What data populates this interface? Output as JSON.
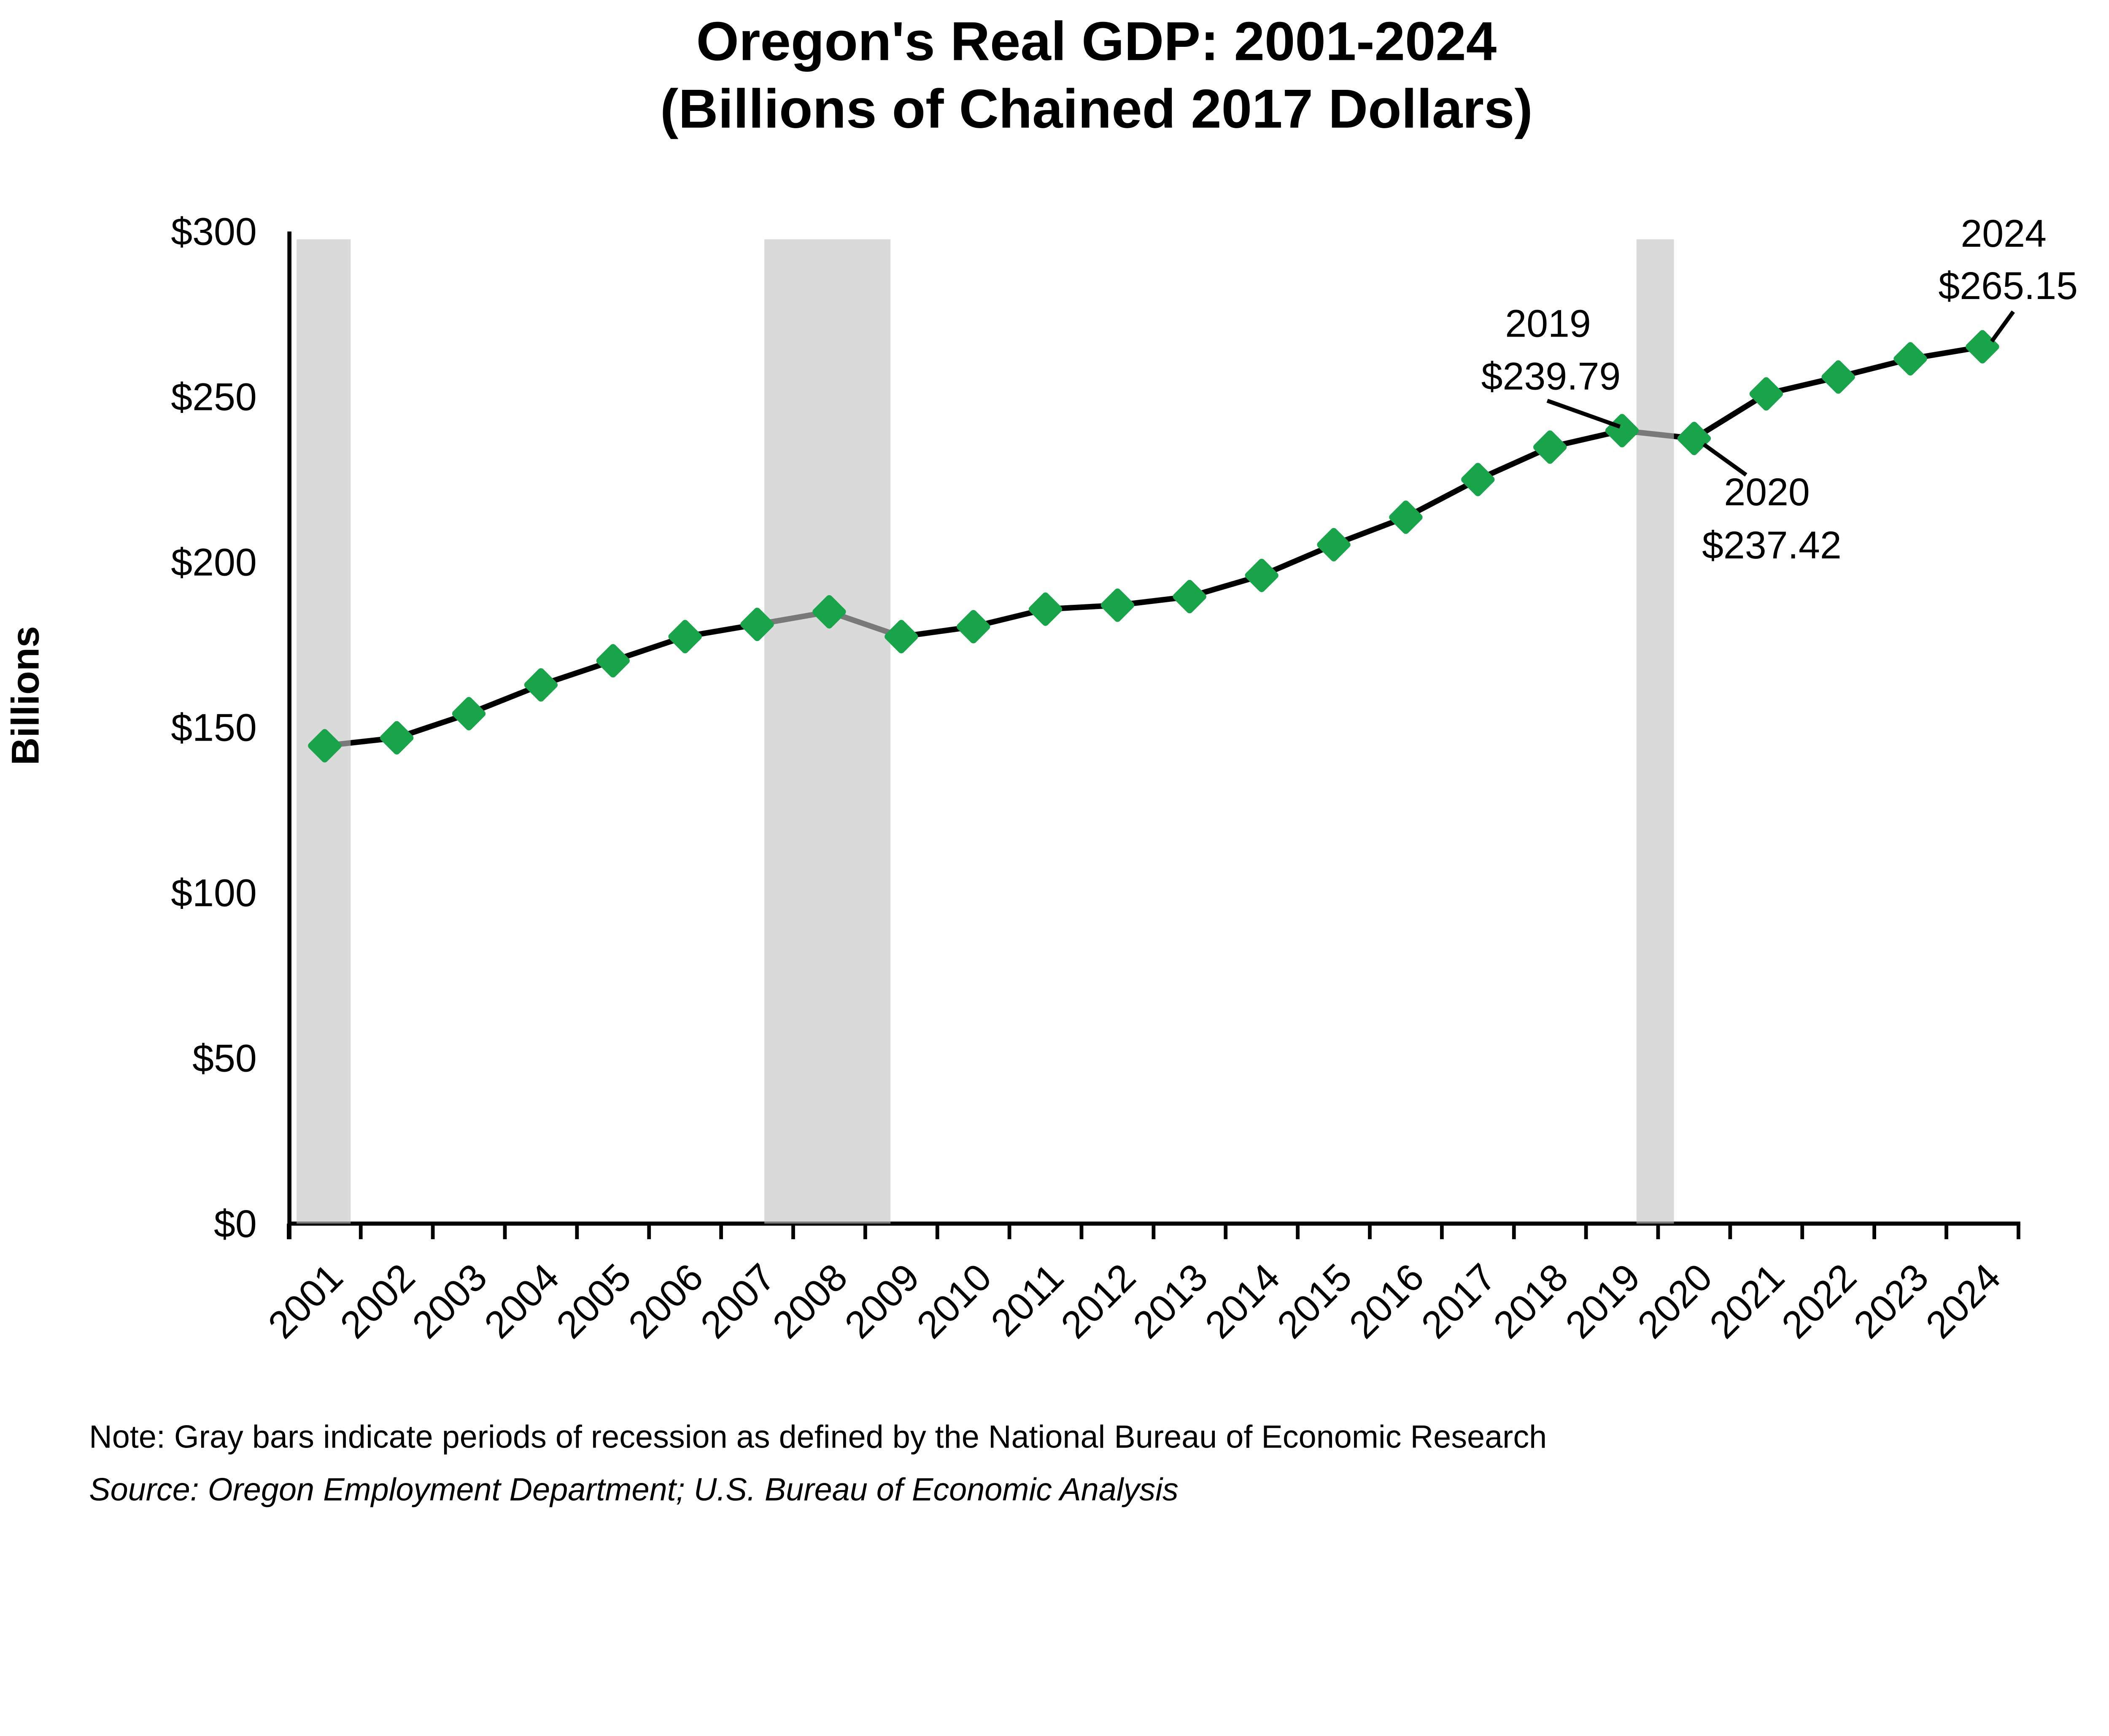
{
  "title": {
    "line1": "Oregon's Real GDP: 2001-2024",
    "line2": "(Billions of Chained 2017 Dollars)"
  },
  "y_axis": {
    "label": "Billions",
    "tick_labels": [
      "$0",
      "$50",
      "$100",
      "$150",
      "$200",
      "$250",
      "$300"
    ],
    "tick_values": [
      0,
      50,
      100,
      150,
      200,
      250,
      300
    ],
    "range": [
      0,
      300
    ]
  },
  "x_axis": {
    "categories": [
      "2001",
      "2002",
      "2003",
      "2004",
      "2005",
      "2006",
      "2007",
      "2008",
      "2009",
      "2010",
      "2011",
      "2012",
      "2013",
      "2014",
      "2015",
      "2016",
      "2017",
      "2018",
      "2019",
      "2020",
      "2021",
      "2022",
      "2023",
      "2024"
    ]
  },
  "chart_data": {
    "type": "line",
    "title": "Oregon's Real GDP: 2001-2024 (Billions of Chained 2017 Dollars)",
    "xlabel": "",
    "ylabel": "Billions",
    "ylim": [
      0,
      300
    ],
    "grid": false,
    "marker": "diamond",
    "legend": "none",
    "colors": {
      "line": "#000000",
      "marker": "#19a44c",
      "recession_band": "#d9d9d9",
      "recession_band_overlay": "rgba(196,196,196,0.62)",
      "text": "#000000"
    },
    "series": [
      {
        "name": "Oregon Real GDP",
        "x": [
          2001,
          2002,
          2003,
          2004,
          2005,
          2006,
          2007,
          2008,
          2009,
          2010,
          2011,
          2012,
          2013,
          2014,
          2015,
          2016,
          2017,
          2018,
          2019,
          2020,
          2021,
          2022,
          2023,
          2024
        ],
        "values": [
          144.5,
          146.9,
          154.2,
          162.9,
          170.2,
          177.5,
          181.2,
          185.0,
          177.5,
          180.5,
          185.8,
          187.0,
          189.6,
          196.0,
          205.3,
          213.6,
          225.0,
          234.8,
          239.79,
          237.42,
          250.9,
          256.0,
          261.5,
          265.15
        ]
      }
    ],
    "recession_bands": [
      {
        "from": 2000.61,
        "to": 2001.36
      },
      {
        "from": 2007.1,
        "to": 2008.85
      },
      {
        "from": 2019.2,
        "to": 2019.72
      }
    ],
    "annotations": [
      {
        "year": 2019,
        "value": 239.79,
        "line1": "2019",
        "line2": "$239.79"
      },
      {
        "year": 2020,
        "value": 237.42,
        "line1": "2020",
        "line2": "$237.42"
      },
      {
        "year": 2024,
        "value": 265.15,
        "line1": "2024",
        "line2": "$265.15"
      }
    ]
  },
  "note": "Note: Gray bars indicate periods of recession as defined by the National Bureau of Economic Research",
  "source": "Source: Oregon Employment Department; U.S. Bureau of Economic Analysis"
}
